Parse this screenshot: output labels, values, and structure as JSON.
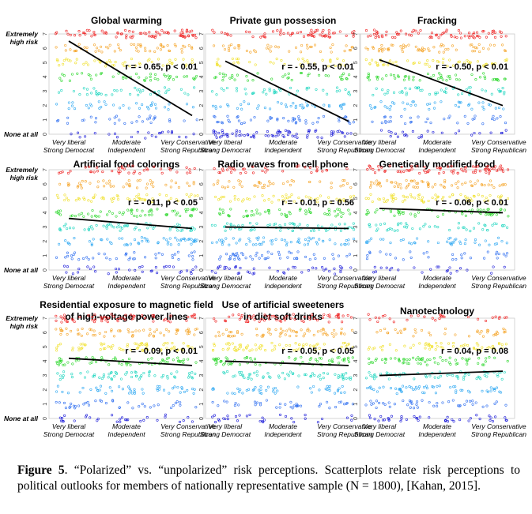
{
  "chart_data": {
    "type": "scatter",
    "layout": "3x3 grid",
    "y_axis": {
      "range": [
        0,
        7
      ],
      "ticks": [
        "0",
        "1",
        "2",
        "3",
        "4",
        "5",
        "6",
        "7"
      ],
      "top_label": [
        "Extremely",
        "high risk"
      ],
      "bottom_label": "None at all"
    },
    "x_axis": {
      "ticks": [
        [
          "Very liberal",
          "Strong Democrat"
        ],
        [
          "Moderate",
          "Independent"
        ],
        [
          "Very Conservative",
          "Strong Republican"
        ]
      ]
    },
    "level_colors": [
      "#1a1ad9",
      "#2e6ef0",
      "#2fa8f2",
      "#22d6c0",
      "#2ed82e",
      "#f0e02a",
      "#f5a52a",
      "#ee2222"
    ],
    "panels": [
      {
        "title": [
          "Global warming"
        ],
        "r_text": "r = - 0.65, p < 0.01",
        "trend_y": [
          6.5,
          1.3
        ],
        "level_weights": [
          0.3,
          0.4,
          0.45,
          0.55,
          0.6,
          0.65,
          0.75,
          1.0
        ]
      },
      {
        "title": [
          "Private gun possession"
        ],
        "r_text": "r = - 0.55, p < 0.01",
        "trend_y": [
          5.1,
          0.9
        ],
        "level_weights": [
          1.0,
          0.65,
          0.55,
          0.55,
          0.5,
          0.5,
          0.55,
          0.8
        ]
      },
      {
        "title": [
          "Fracking"
        ],
        "r_text": "r = - 0.50, p < 0.01",
        "trend_y": [
          5.2,
          2.0
        ],
        "level_weights": [
          0.35,
          0.45,
          0.55,
          0.65,
          0.7,
          0.7,
          0.8,
          1.0
        ]
      },
      {
        "title": [
          "Artificial food colorings"
        ],
        "r_text": "r = - 011, p < 0.05",
        "trend_y": [
          3.6,
          2.9
        ],
        "level_weights": [
          0.45,
          0.55,
          0.75,
          0.8,
          0.85,
          0.7,
          0.6,
          0.55
        ]
      },
      {
        "title": [
          "Radio waves from cell phone"
        ],
        "r_text": "r = - 0.01, p = 0.56",
        "trend_y": [
          3.0,
          2.9
        ],
        "level_weights": [
          0.55,
          0.65,
          0.8,
          0.85,
          0.75,
          0.65,
          0.55,
          0.45
        ]
      },
      {
        "title": [
          "Genetically modified food"
        ],
        "r_text": "r = - 0.06, p < 0.01",
        "trend_y": [
          4.3,
          4.0
        ],
        "level_weights": [
          0.3,
          0.4,
          0.55,
          0.65,
          0.8,
          0.9,
          0.9,
          1.0
        ]
      },
      {
        "title": [
          "Residential exposure to magnetic field",
          "of high-voltage power lines"
        ],
        "r_text": "r = - 0.09, p < 0.01",
        "trend_y": [
          4.2,
          3.7
        ],
        "level_weights": [
          0.4,
          0.5,
          0.6,
          0.8,
          0.9,
          0.9,
          0.85,
          0.8
        ]
      },
      {
        "title": [
          "Use of artificial sweeteners",
          "in diet soft drinks"
        ],
        "r_text": "r = - 0.05, p < 0.05",
        "trend_y": [
          4.0,
          3.7
        ],
        "level_weights": [
          0.4,
          0.5,
          0.6,
          0.8,
          0.9,
          0.9,
          0.85,
          0.8
        ]
      },
      {
        "title": [
          "Nanotechnology"
        ],
        "r_text": "r = 0.04, p = 0.08",
        "trend_y": [
          3.0,
          3.3
        ],
        "level_weights": [
          0.55,
          0.6,
          0.75,
          0.8,
          0.85,
          0.75,
          0.5,
          0.4
        ]
      }
    ]
  },
  "caption": {
    "label": "Figure 5",
    "text": ". “Polarized” vs. “unpolarized” risk perceptions. Scatterplots relate risk perceptions to political outlooks for members of nationally representative sample (N = 1800), [Kahan, 2015]."
  }
}
